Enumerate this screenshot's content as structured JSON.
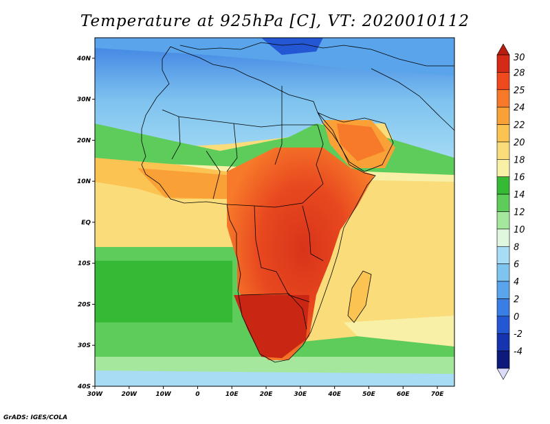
{
  "title": "Temperature at 925hPa [C], VT: 2020010112",
  "credit": "GrADS: IGES/COLA",
  "map": {
    "lon_range": [
      -30,
      75
    ],
    "lat_range": [
      -40,
      45
    ],
    "lon_ticks": [
      "30W",
      "20W",
      "10W",
      "0",
      "10E",
      "20E",
      "30E",
      "40E",
      "50E",
      "60E",
      "70E"
    ],
    "lat_ticks": [
      "40S",
      "30S",
      "20S",
      "10S",
      "EQ",
      "10N",
      "20N",
      "30N",
      "40N"
    ]
  },
  "colorbar": {
    "labels": [
      "30",
      "28",
      "25",
      "24",
      "22",
      "20",
      "18",
      "16",
      "14",
      "12",
      "10",
      "8",
      "6",
      "4",
      "2",
      "0",
      "-2",
      "-4"
    ],
    "colors": [
      "#d42a16",
      "#ef4a1f",
      "#f77a2a",
      "#f9a136",
      "#fbc352",
      "#fadd7a",
      "#f7f0a6",
      "#36b934",
      "#5dcc5a",
      "#a5e79c",
      "#dff7df",
      "#a7dcf4",
      "#7fc3ef",
      "#59a4ea",
      "#3a7ee3",
      "#2457d4",
      "#1633b0",
      "#0d1a7c"
    ]
  },
  "colors": {
    "land_outline": "#000000"
  }
}
